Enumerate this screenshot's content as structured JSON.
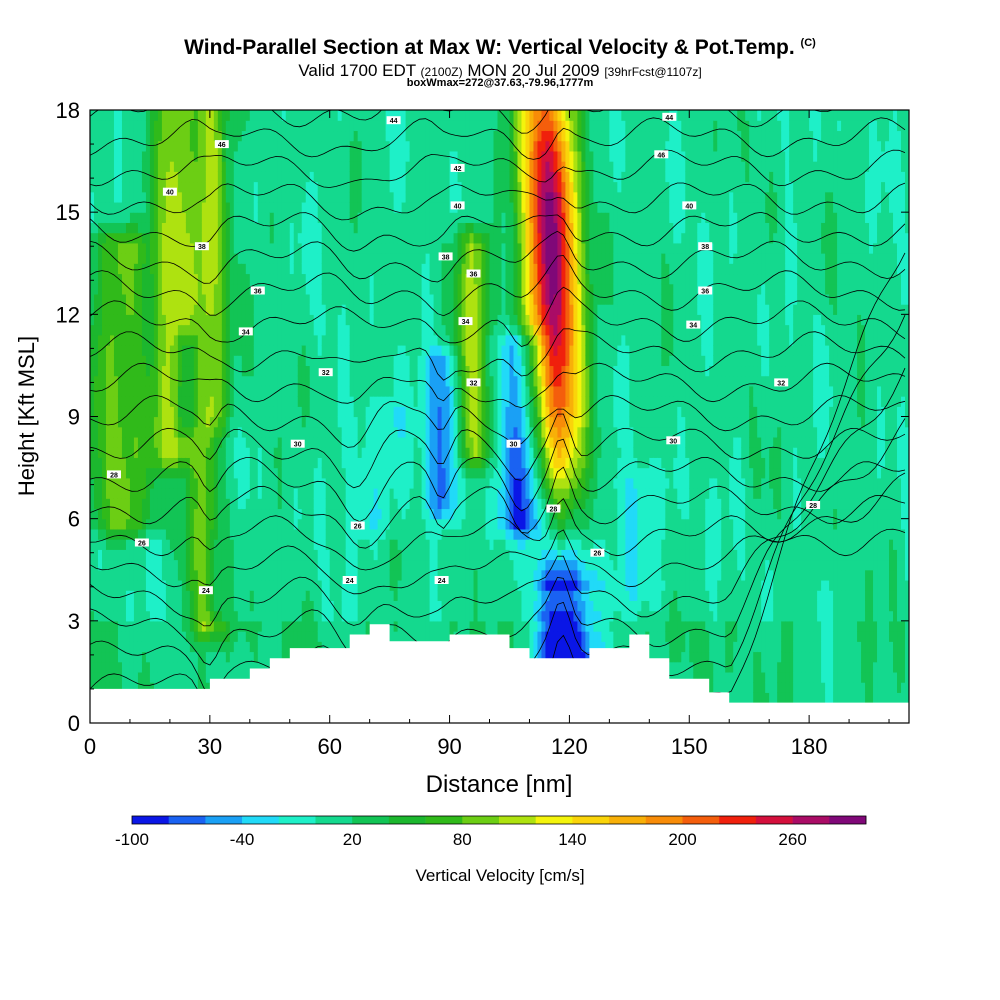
{
  "header": {
    "title": "Wind-Parallel Section at Max W: Vertical Velocity & Pot.Temp.",
    "copyright": "(C)",
    "valid_prefix": "Valid 1700 EDT",
    "valid_utc": "(2100Z)",
    "valid_date": "MON 20 Jul 2009",
    "forecast": "[39hrFcst@1107z]",
    "box_wmax": "boxWmax=272@37.63,-79.96,1777m"
  },
  "chart_data": {
    "type": "heatmap",
    "xlabel": "Distance [nm]",
    "ylabel": "Height [Kft MSL]",
    "xlim": [
      0,
      205
    ],
    "ylim": [
      0,
      18
    ],
    "x_ticks": [
      0,
      30,
      60,
      90,
      120,
      150,
      180
    ],
    "y_ticks": [
      0,
      3,
      6,
      9,
      12,
      15,
      18
    ],
    "colorbar": {
      "label": "Vertical Velocity [cm/s]",
      "tick_labels": [
        "-100",
        "-40",
        "20",
        "80",
        "140",
        "200",
        "260"
      ],
      "tick_values": [
        -100,
        -40,
        20,
        80,
        140,
        200,
        260
      ],
      "bins": [
        -100,
        -80,
        -60,
        -40,
        -20,
        0,
        20,
        40,
        60,
        80,
        100,
        120,
        140,
        160,
        180,
        200,
        220,
        240,
        260,
        280,
        300
      ],
      "colors": [
        "#0a16e6",
        "#1a62f2",
        "#1aa0f5",
        "#21daf8",
        "#1ef0c8",
        "#14d98e",
        "#12c455",
        "#1cb72e",
        "#30ba1a",
        "#6cce14",
        "#aee210",
        "#f4f40c",
        "#fad40a",
        "#f8b008",
        "#f88c08",
        "#f45e0c",
        "#f0200c",
        "#d4103c",
        "#aa0c66",
        "#800878"
      ]
    },
    "terrain_profile": {
      "x": [
        0,
        30,
        30,
        40,
        40,
        45,
        45,
        50,
        50,
        65,
        65,
        70,
        70,
        75,
        75,
        90,
        90,
        105,
        105,
        110,
        110,
        125,
        125,
        135,
        135,
        140,
        140,
        145,
        145,
        155,
        155,
        160,
        160,
        205
      ],
      "height": [
        1.0,
        1.0,
        1.3,
        1.3,
        1.6,
        1.6,
        1.9,
        1.9,
        2.2,
        2.2,
        2.6,
        2.6,
        2.9,
        2.9,
        2.4,
        2.4,
        2.6,
        2.6,
        2.2,
        2.2,
        1.9,
        1.9,
        2.2,
        2.2,
        2.6,
        2.6,
        1.9,
        1.9,
        1.3,
        1.3,
        0.9,
        0.9,
        0.6,
        0.6
      ]
    },
    "features": [
      {
        "kind": "updraft",
        "x": 117,
        "width": 6,
        "peak": 272,
        "z_range": [
          2,
          18
        ],
        "lean": -3
      },
      {
        "kind": "updraft",
        "x": 30,
        "width": 4,
        "peak": 100,
        "z_range": [
          3,
          18
        ],
        "lean": 0
      },
      {
        "kind": "updraft",
        "x": 21,
        "width": 4,
        "peak": 95,
        "z_range": [
          8,
          18
        ],
        "lean": 0
      },
      {
        "kind": "updraft",
        "x": 96,
        "width": 3.5,
        "peak": 90,
        "z_range": [
          8,
          14
        ],
        "lean": 0
      },
      {
        "kind": "updraft",
        "x": 8,
        "width": 7,
        "peak": 80,
        "z_range": [
          6,
          14
        ],
        "lean": 0
      },
      {
        "kind": "downdraft",
        "x": 108,
        "width": 5,
        "peak": -85,
        "z_range": [
          6,
          11
        ],
        "lean": 0
      },
      {
        "kind": "downdraft",
        "x": 88,
        "width": 3,
        "peak": -70,
        "z_range": [
          6.5,
          10.5
        ],
        "lean": 0
      },
      {
        "kind": "downdraft",
        "x": 32,
        "width": 2.5,
        "peak": -60,
        "z_range": [
          3.5,
          8
        ],
        "lean": 0
      },
      {
        "kind": "downdraft",
        "x": 24,
        "width": 2.5,
        "peak": -50,
        "z_range": [
          9,
          11
        ],
        "lean": 0
      },
      {
        "kind": "downdraft",
        "x": 72,
        "width": 6,
        "peak": -30,
        "z_range": [
          6,
          9
        ],
        "lean": 0
      },
      {
        "kind": "downdraft",
        "x": 137,
        "width": 8,
        "peak": -25,
        "z_range": [
          4,
          7
        ],
        "lean": 0
      }
    ],
    "pot_temp_contour_labels": [
      {
        "x": 76,
        "z": 17.7,
        "text": "44"
      },
      {
        "x": 145,
        "z": 17.8,
        "text": "44"
      },
      {
        "x": 33,
        "z": 17.0,
        "text": "46"
      },
      {
        "x": 143,
        "z": 16.7,
        "text": "46"
      },
      {
        "x": 20,
        "z": 15.6,
        "text": "40"
      },
      {
        "x": 92,
        "z": 16.3,
        "text": "42"
      },
      {
        "x": 92,
        "z": 15.2,
        "text": "40"
      },
      {
        "x": 150,
        "z": 15.2,
        "text": "40"
      },
      {
        "x": 28,
        "z": 14.0,
        "text": "38"
      },
      {
        "x": 89,
        "z": 13.7,
        "text": "38"
      },
      {
        "x": 154,
        "z": 14.0,
        "text": "38"
      },
      {
        "x": 96,
        "z": 13.2,
        "text": "36"
      },
      {
        "x": 42,
        "z": 12.7,
        "text": "36"
      },
      {
        "x": 154,
        "z": 12.7,
        "text": "36"
      },
      {
        "x": 39,
        "z": 11.5,
        "text": "34"
      },
      {
        "x": 94,
        "z": 11.8,
        "text": "34"
      },
      {
        "x": 151,
        "z": 11.7,
        "text": "34"
      },
      {
        "x": 59,
        "z": 10.3,
        "text": "32"
      },
      {
        "x": 96,
        "z": 10.0,
        "text": "32"
      },
      {
        "x": 173,
        "z": 10.0,
        "text": "32"
      },
      {
        "x": 52,
        "z": 8.2,
        "text": "30"
      },
      {
        "x": 106,
        "z": 8.2,
        "text": "30"
      },
      {
        "x": 146,
        "z": 8.3,
        "text": "30"
      },
      {
        "x": 6,
        "z": 7.3,
        "text": "28"
      },
      {
        "x": 116,
        "z": 6.3,
        "text": "28"
      },
      {
        "x": 181,
        "z": 6.4,
        "text": "28"
      },
      {
        "x": 67,
        "z": 5.8,
        "text": "26"
      },
      {
        "x": 13,
        "z": 5.3,
        "text": "26"
      },
      {
        "x": 127,
        "z": 5.0,
        "text": "26"
      },
      {
        "x": 65,
        "z": 4.2,
        "text": "24"
      },
      {
        "x": 88,
        "z": 4.2,
        "text": "24"
      },
      {
        "x": 29,
        "z": 3.9,
        "text": "24"
      }
    ]
  }
}
